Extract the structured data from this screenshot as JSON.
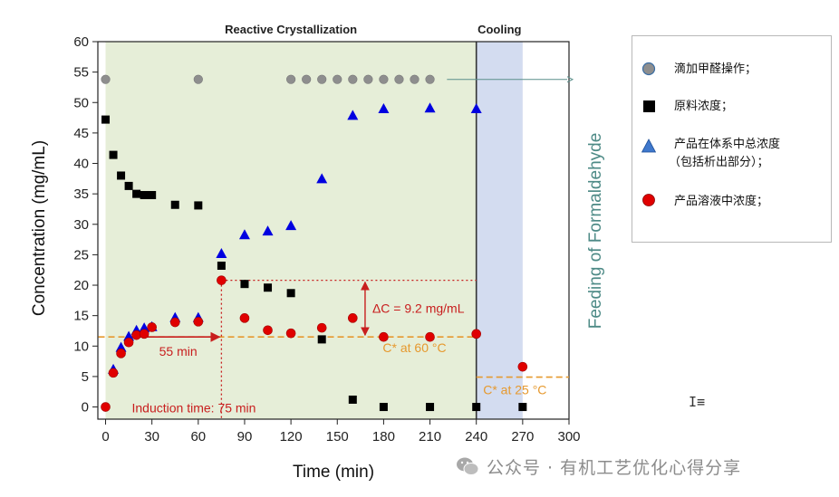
{
  "chart_data": {
    "type": "scatter",
    "xlabel": "Time (min)",
    "ylabel": "Concentration (mg/mL)",
    "right_label": "Feeding of Formaldehyde",
    "xlim": [
      -5,
      300
    ],
    "ylim": [
      -2,
      60
    ],
    "x_ticks": [
      0,
      30,
      60,
      90,
      120,
      150,
      180,
      210,
      240,
      270,
      300
    ],
    "y_ticks": [
      0,
      5,
      10,
      15,
      20,
      25,
      30,
      35,
      40,
      45,
      50,
      55,
      60
    ],
    "regions": [
      {
        "label": "Reactive Crystallization",
        "x": [
          0,
          240
        ],
        "color": "#e6eed8"
      },
      {
        "label": "Cooling",
        "x": [
          240,
          270
        ],
        "color": "#d3dcf0"
      }
    ],
    "series": [
      {
        "name": "滴加甲醛操作；",
        "marker": "circle",
        "color": "#8e8e8e",
        "x": [
          0,
          60,
          120,
          130,
          140,
          150,
          160,
          170,
          180,
          190,
          200,
          210
        ],
        "y": [
          53.8,
          53.8,
          53.8,
          53.8,
          53.8,
          53.8,
          53.8,
          53.8,
          53.8,
          53.8,
          53.8,
          53.8
        ]
      },
      {
        "name": "原料浓度；",
        "marker": "square",
        "color": "#000000",
        "x": [
          0,
          5,
          10,
          15,
          20,
          25,
          30,
          45,
          60,
          75,
          90,
          105,
          120,
          140,
          160,
          180,
          210,
          240,
          270
        ],
        "y": [
          47.2,
          41.4,
          38.0,
          36.3,
          35.0,
          34.8,
          34.8,
          33.2,
          33.1,
          23.2,
          20.2,
          19.6,
          18.7,
          11.1,
          1.2,
          0,
          0,
          0,
          0
        ]
      },
      {
        "name": "产品在体系中总浓度（包括析出部分）；",
        "marker": "triangle",
        "color": "#0000e0",
        "x": [
          5,
          10,
          15,
          20,
          25,
          30,
          45,
          60,
          75,
          90,
          105,
          120,
          140,
          160,
          180,
          210,
          240
        ],
        "y": [
          6.2,
          9.8,
          11.6,
          12.6,
          13.0,
          13.2,
          14.7,
          14.7,
          25.2,
          28.3,
          28.9,
          29.8,
          37.5,
          47.9,
          49.0,
          49.1,
          49.0
        ]
      },
      {
        "name": "产品溶液中浓度；",
        "marker": "circle",
        "color": "#e00000",
        "x": [
          0,
          5,
          10,
          15,
          20,
          25,
          30,
          45,
          60,
          75,
          90,
          105,
          120,
          140,
          160,
          180,
          210,
          240,
          270
        ],
        "y": [
          0,
          5.6,
          8.8,
          10.6,
          11.8,
          12.0,
          13.1,
          13.9,
          14.0,
          20.8,
          14.6,
          12.6,
          12.1,
          13.0,
          14.6,
          11.5,
          11.5,
          12.0,
          6.6
        ]
      }
    ],
    "reference_lines": [
      {
        "label": "C* at 60 °C",
        "y": 11.5,
        "x": [
          0,
          240
        ]
      },
      {
        "label": "C* at 25 °C",
        "y": 4.9,
        "x": [
          240,
          300
        ]
      }
    ],
    "annotations": [
      {
        "text": "55 min",
        "arrow_from_x": 20,
        "arrow_to_x": 75,
        "y": 11.5
      },
      {
        "text": "Induction time: 75 min",
        "x": 75
      },
      {
        "text": "ΔC = 9.2 mg/mL",
        "x": 168,
        "y_from": 11.5,
        "y_to": 20.8
      }
    ],
    "legend_position": "right"
  },
  "legend_title_lines": {
    "triangle_line2": "（包括析出部分）；",
    "triangle_line1": "产品在体系中总浓度"
  },
  "watermark": "公众号 · 有机工艺优化心得分享"
}
